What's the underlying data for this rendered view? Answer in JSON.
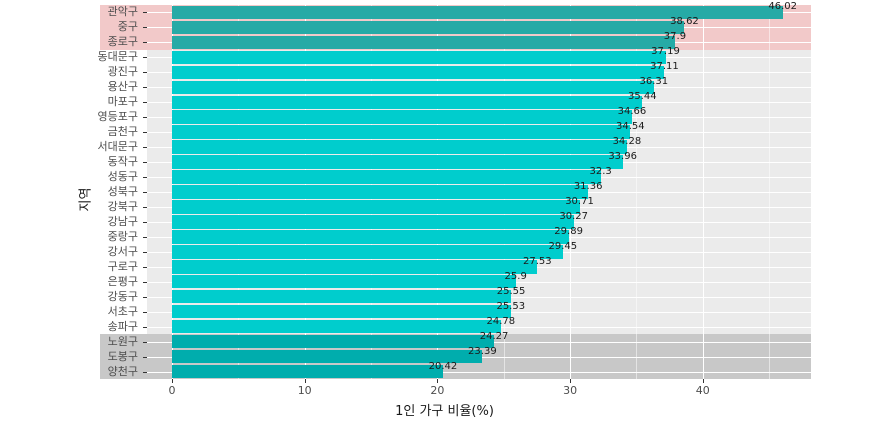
{
  "chart_data": {
    "type": "bar",
    "orientation": "horizontal",
    "title": "",
    "xlabel": "1인 가구 비율(%)",
    "ylabel": "지역",
    "xlim": [
      -2,
      48
    ],
    "xticks": [
      0,
      10,
      20,
      30,
      40
    ],
    "grid": true,
    "legend": null,
    "categories": [
      "관악구",
      "중구",
      "종로구",
      "동대문구",
      "광진구",
      "용산구",
      "마포구",
      "영등포구",
      "금천구",
      "서대문구",
      "동작구",
      "성동구",
      "성북구",
      "강북구",
      "강남구",
      "중랑구",
      "강서구",
      "구로구",
      "은평구",
      "강동구",
      "서초구",
      "송파구",
      "노원구",
      "도봉구",
      "양천구"
    ],
    "values": [
      46.02,
      38.62,
      37.9,
      37.19,
      37.11,
      36.31,
      35.44,
      34.66,
      34.54,
      34.28,
      33.96,
      32.3,
      31.36,
      30.71,
      30.27,
      29.89,
      29.45,
      27.53,
      25.9,
      25.55,
      25.53,
      24.78,
      24.27,
      23.39,
      20.42
    ],
    "value_labels": [
      "46.02",
      "38.62",
      "37.9",
      "37.19",
      "37.11",
      "36.31",
      "35.44",
      "34.66",
      "34.54",
      "34.28",
      "33.96",
      "32.3",
      "31.36",
      "30.71",
      "30.27",
      "29.89",
      "29.45",
      "27.53",
      "25.9",
      "25.55",
      "25.53",
      "24.78",
      "24.27",
      "23.39",
      "20.42"
    ],
    "highlight_top": {
      "count": 3,
      "band_color": "#f2c9c9",
      "bar_color": "#26aaa6"
    },
    "highlight_bottom": {
      "count": 3,
      "band_color": "#c8c8c8",
      "bar_color": "#00adad"
    },
    "default_bar_color": "#00cdcd",
    "panel_background": "#ebebeb"
  }
}
